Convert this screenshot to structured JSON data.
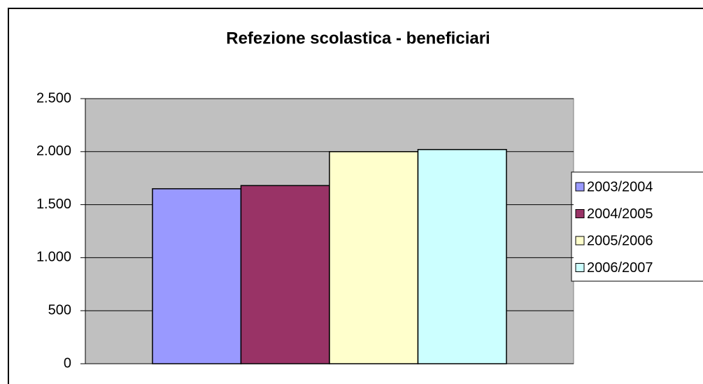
{
  "chart_data": {
    "type": "bar",
    "title": "Refezione scolastica - beneficiari",
    "categories": [
      null
    ],
    "series": [
      {
        "name": "2003/2004",
        "color": "#9999ff",
        "values": [
          1650
        ]
      },
      {
        "name": "2004/2005",
        "color": "#993366",
        "values": [
          1680
        ]
      },
      {
        "name": "2005/2006",
        "color": "#ffffcc",
        "values": [
          2000
        ]
      },
      {
        "name": "2006/2007",
        "color": "#ccffff",
        "values": [
          2020
        ]
      }
    ],
    "ylim": [
      0,
      2500
    ],
    "yticks": [
      0,
      500,
      {
        "value": 1000,
        "label": "1.000"
      },
      {
        "value": 1500,
        "label": "1.500"
      },
      {
        "value": 2000,
        "label": "2.000"
      },
      {
        "value": 2500,
        "label": "2.500"
      }
    ],
    "grid": true,
    "legend": "right"
  }
}
